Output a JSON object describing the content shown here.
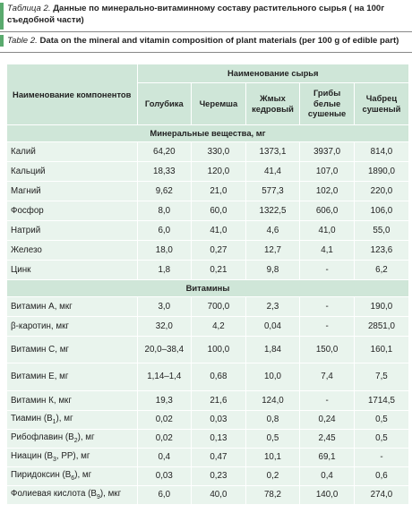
{
  "caption": {
    "ru_label": "Таблица 2.",
    "ru_text": "Данные по минерально-витаминному составу растительного сырья ( на 100г съедобной части)",
    "en_label": "Table 2.",
    "en_text": "Data on the mineral and vitamin composition of plant materials (per 100 g of edible part)"
  },
  "table": {
    "component_header": "Наименование компонентов",
    "group_header": "Наименование сырья",
    "columns": [
      "Голубика",
      "Черемша",
      "Жмых кедровый",
      "Грибы белые сушеные",
      "Чабрец сушеный"
    ],
    "sections": [
      {
        "title": "Минеральные вещества, мг",
        "rows": [
          {
            "name": "Калий",
            "values": [
              "64,20",
              "330,0",
              "1373,1",
              "3937,0",
              "814,0"
            ]
          },
          {
            "name": "Кальций",
            "values": [
              "18,33",
              "120,0",
              "41,4",
              "107,0",
              "1890,0"
            ]
          },
          {
            "name": "Магний",
            "values": [
              "9,62",
              "21,0",
              "577,3",
              "102,0",
              "220,0"
            ]
          },
          {
            "name": "Фосфор",
            "values": [
              "8,0",
              "60,0",
              "1322,5",
              "606,0",
              "106,0"
            ]
          },
          {
            "name": "Натрий",
            "values": [
              "6,0",
              "41,0",
              "4,6",
              "41,0",
              "55,0"
            ]
          },
          {
            "name": "Железо",
            "values": [
              "18,0",
              "0,27",
              "12,7",
              "4,1",
              "123,6"
            ]
          },
          {
            "name": "Цинк",
            "values": [
              "1,8",
              "0,21",
              "9,8",
              "-",
              "6,2"
            ]
          }
        ]
      },
      {
        "title": "Витамины",
        "rows": [
          {
            "name": "Витамин А, мкг",
            "values": [
              "3,0",
              "700,0",
              "2,3",
              "-",
              "190,0"
            ]
          },
          {
            "name": "β-каротин, мкг",
            "values": [
              "32,0",
              "4,2",
              "0,04",
              "-",
              "2851,0"
            ]
          },
          {
            "name": "Витамин С, мг",
            "values": [
              "20,0–38,4",
              "100,0",
              "1,84",
              "150,0",
              "160,1"
            ]
          },
          {
            "name": "Витамин Е, мг",
            "values": [
              "1,14–1,4",
              "0,68",
              "10,0",
              "7,4",
              "7,5"
            ]
          },
          {
            "name": "Витамин К, мкг",
            "values": [
              "19,3",
              "21,6",
              "124,0",
              "-",
              "1714,5"
            ]
          },
          {
            "name": "Тиамин (В",
            "sub": "1",
            "tail": "), мг",
            "values": [
              "0,02",
              "0,03",
              "0,8",
              "0,24",
              "0,5"
            ]
          },
          {
            "name": "Рибофлавин (В",
            "sub": "2",
            "tail": "), мг",
            "values": [
              "0,02",
              "0,13",
              "0,5",
              "2,45",
              "0,5"
            ]
          },
          {
            "name": "Ниацин (В",
            "sub": "3",
            "tail": ", РР), мг",
            "values": [
              "0,4",
              "0,47",
              "10,1",
              "69,1",
              "-"
            ]
          },
          {
            "name": "Пиридоксин (В",
            "sub": "6",
            "tail": "), мг",
            "values": [
              "0,03",
              "0,23",
              "0,2",
              "0,4",
              "0,6"
            ]
          },
          {
            "name": "Фолиевая кислота (В",
            "sub": "9",
            "tail": "), мкг",
            "values": [
              "6,0",
              "40,0",
              "78,2",
              "140,0",
              "274,0"
            ]
          }
        ]
      }
    ]
  },
  "colors": {
    "header_bg": "#cfe6d8",
    "row_bg": "#e9f4ed",
    "accent_bar": "#5aaa6e"
  }
}
